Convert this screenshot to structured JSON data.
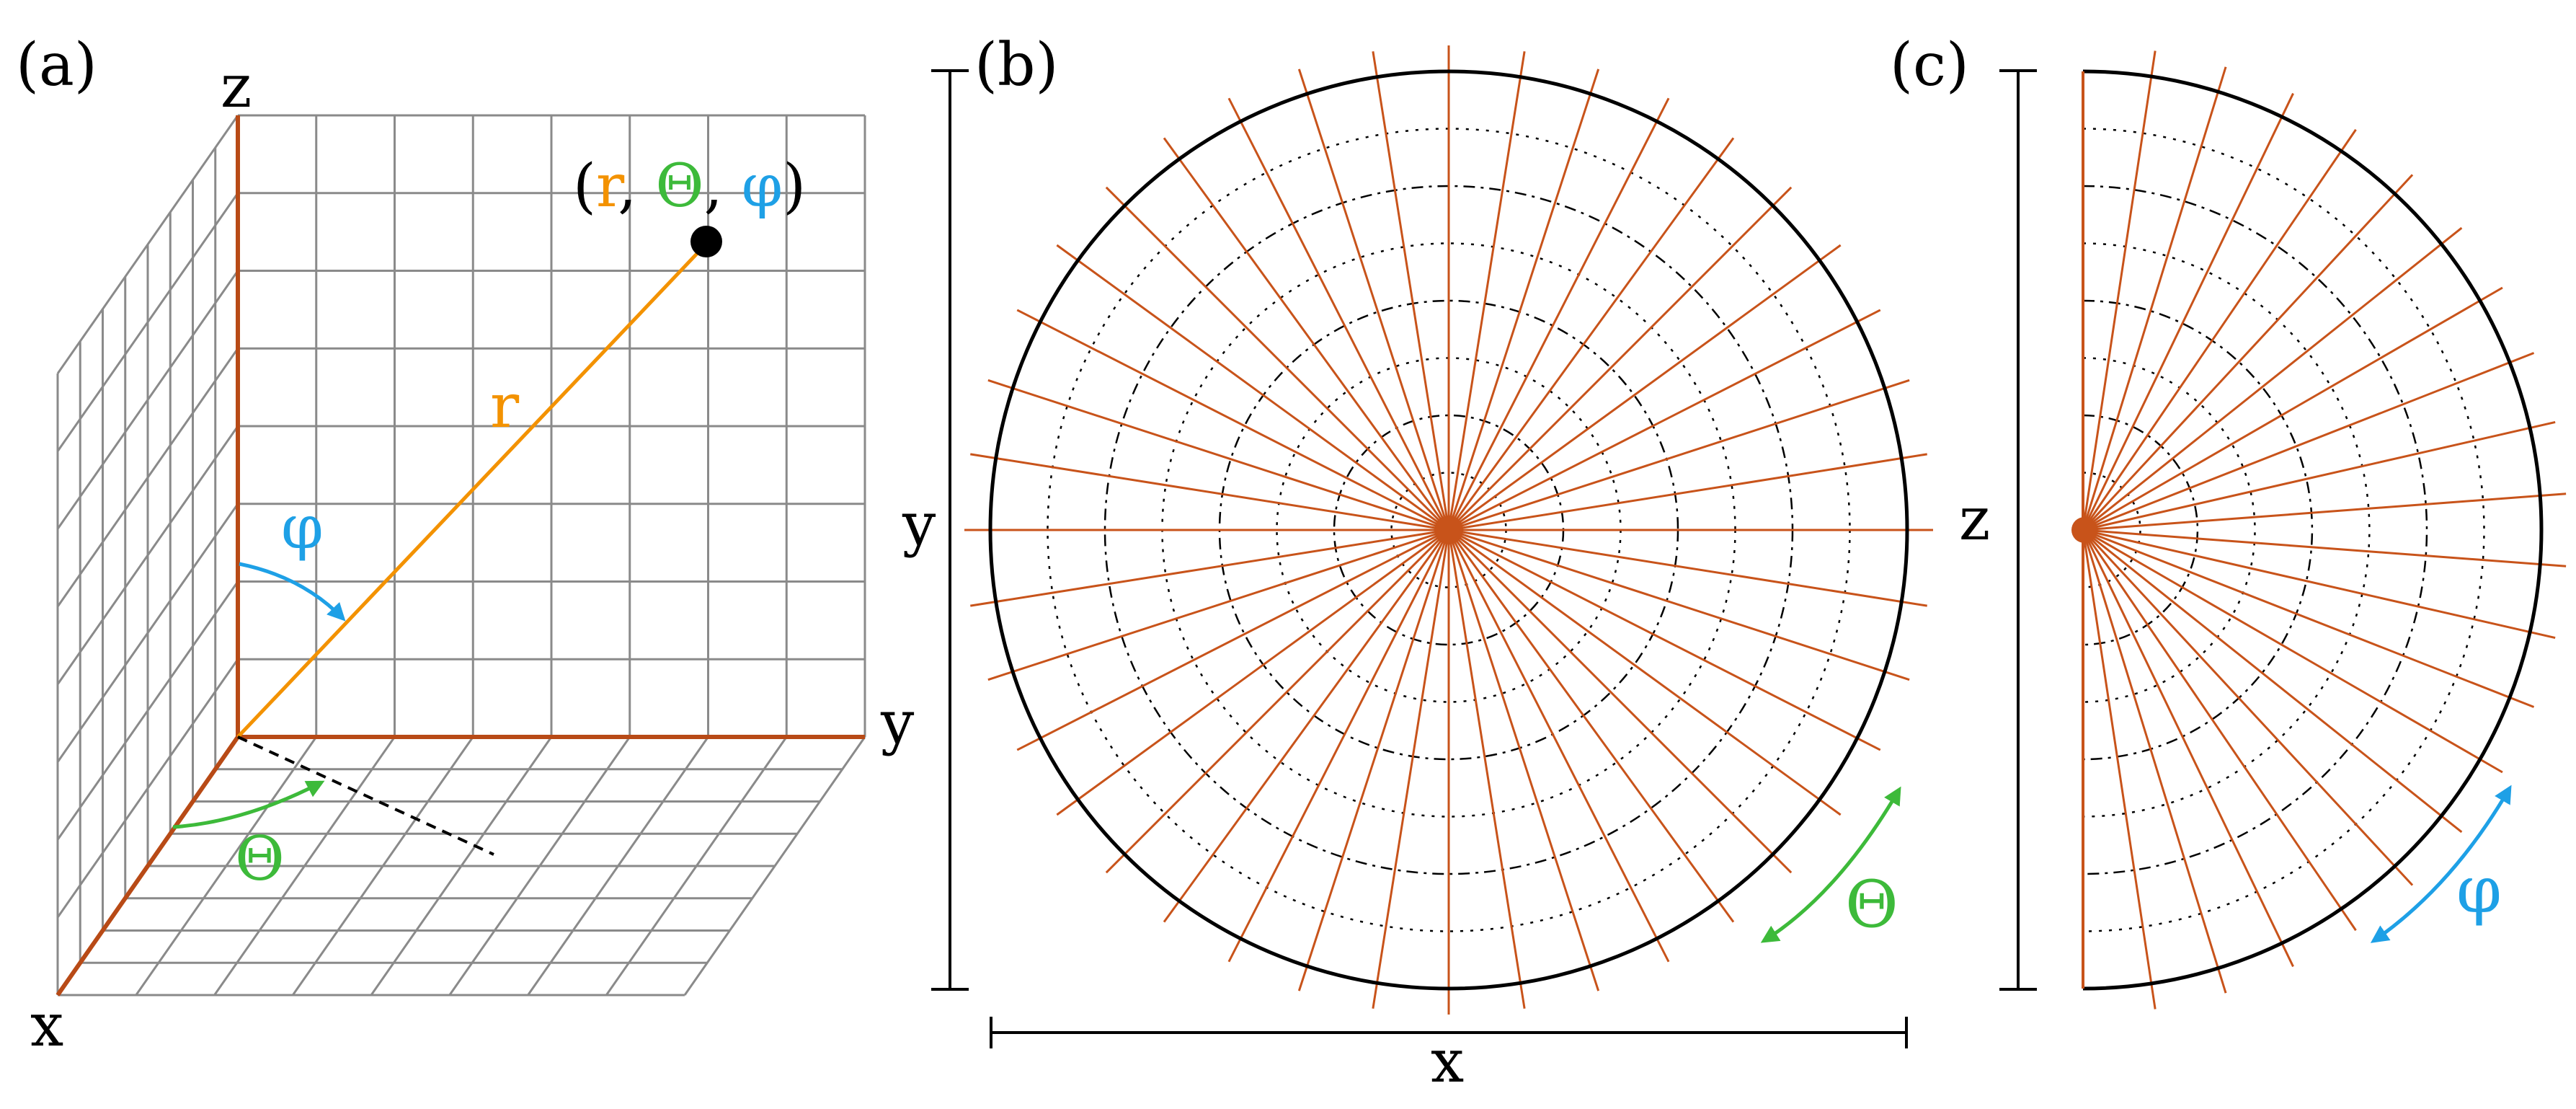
{
  "panels": {
    "a": {
      "label": "(a)",
      "axis_z": "z",
      "axis_y": "y",
      "axis_x": "x",
      "point_open": "(",
      "point_r": "r",
      "point_sep1": ", ",
      "point_theta": "Θ",
      "point_sep2": ", ",
      "point_phi": "φ",
      "point_close": ")",
      "r_label": "r",
      "phi_label": "φ",
      "theta_label": "Θ"
    },
    "b": {
      "label": "(b)",
      "axis_y": "y",
      "axis_x": "x",
      "theta_label": "Θ",
      "radial_line_count": 40,
      "ring_count": 7
    },
    "c": {
      "label": "(c)",
      "axis_z": "z",
      "phi_label": "φ",
      "radial_line_count": 21,
      "ring_count": 7
    }
  },
  "colors": {
    "orange": "#f39200",
    "radial": "#c8531a",
    "axis": "#b84a16",
    "green": "#3dba3a",
    "blue": "#1ea0e6",
    "grid": "#8a8a8a",
    "black": "#000000"
  }
}
